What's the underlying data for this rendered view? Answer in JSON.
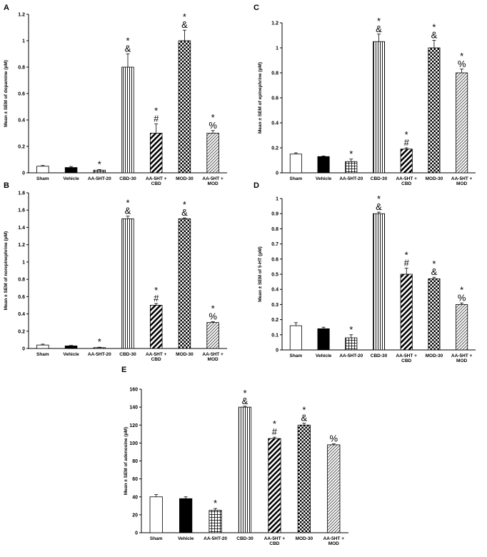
{
  "chart_data": [
    {
      "type": "bar",
      "panel": "A",
      "ylabel": "Mean ± SEM of dopamine (pM)",
      "ylim": [
        0,
        1.2
      ],
      "yticks": [
        "0",
        "0.2",
        "0.4",
        "0.6",
        "0.8",
        "1",
        "1.2"
      ],
      "categories": [
        [
          "Sham"
        ],
        [
          "Vehicle"
        ],
        [
          "AA-5HT-20"
        ],
        [
          "CBD-30"
        ],
        [
          "AA-5HT +",
          "CBD"
        ],
        [
          "MOD-30"
        ],
        [
          "AA-5HT +",
          "MOD"
        ]
      ],
      "values": [
        0.05,
        0.04,
        0.02,
        0.8,
        0.3,
        1.0,
        0.3
      ],
      "errors": [
        0.005,
        0.008,
        0.005,
        0.1,
        0.07,
        0.08,
        0.02
      ],
      "significance": [
        [],
        [],
        [
          "*"
        ],
        [
          "*",
          "&"
        ],
        [
          "*",
          "#"
        ],
        [
          "*",
          "&"
        ],
        [
          "*",
          "%"
        ]
      ]
    },
    {
      "type": "bar",
      "panel": "C",
      "ylabel": "Mean ± SEM of epinephrine (pM)",
      "ylim": [
        0,
        1.2
      ],
      "yticks": [
        "0",
        "0.2",
        "0.4",
        "0.6",
        "0.8",
        "1",
        "1.2"
      ],
      "categories": [
        [
          "Sham"
        ],
        [
          "Vehicle"
        ],
        [
          "AA-5HT-20"
        ],
        [
          "CBD-30"
        ],
        [
          "AA-5HT +",
          "CBD"
        ],
        [
          "MOD-30"
        ],
        [
          "AA-5HT +",
          "MOD"
        ]
      ],
      "values": [
        0.15,
        0.13,
        0.09,
        1.05,
        0.19,
        1.0,
        0.8
      ],
      "errors": [
        0.01,
        0.005,
        0.02,
        0.06,
        0.01,
        0.06,
        0.03
      ],
      "significance": [
        [],
        [],
        [
          "*"
        ],
        [
          "*",
          "&"
        ],
        [
          "*",
          "#"
        ],
        [
          "*",
          "&"
        ],
        [
          "*",
          "%"
        ]
      ]
    },
    {
      "type": "bar",
      "panel": "B",
      "ylabel": "Mean ± SEM of norepinephrine (pM)",
      "ylim": [
        0,
        1.8
      ],
      "yticks": [
        "0",
        "0.2",
        "0.4",
        "0.6",
        "0.8",
        "1",
        "1.2",
        "1.4",
        "1.6",
        "1.8"
      ],
      "categories": [
        [
          "Sham"
        ],
        [
          "Vehicle"
        ],
        [
          "AA-5HT-20"
        ],
        [
          "CBD-30"
        ],
        [
          "AA-5HT +",
          "CBD"
        ],
        [
          "MOD-30"
        ],
        [
          "AA-5HT +",
          "MOD"
        ]
      ],
      "values": [
        0.04,
        0.03,
        0.01,
        1.5,
        0.5,
        1.5,
        0.3
      ],
      "errors": [
        0.01,
        0.005,
        0.005,
        0.03,
        0.02,
        0.01,
        0.01
      ],
      "significance": [
        [],
        [],
        [
          "*"
        ],
        [
          "*",
          "&"
        ],
        [
          "*",
          "#"
        ],
        [
          "*",
          "&"
        ],
        [
          "*",
          "%"
        ]
      ]
    },
    {
      "type": "bar",
      "panel": "D",
      "ylabel": "Mean ± SEM of 5-HT (pM)",
      "ylim": [
        0,
        1
      ],
      "yticks": [
        "0",
        "0.1",
        "0.2",
        "0.3",
        "0.4",
        "0.5",
        "0.6",
        "0.7",
        "0.8",
        "0.9",
        "1"
      ],
      "categories": [
        [
          "Sham"
        ],
        [
          "Vehicle"
        ],
        [
          "AA-5HT-20"
        ],
        [
          "CBD-30"
        ],
        [
          "AA-5HT +",
          "CBD"
        ],
        [
          "MOD-30"
        ],
        [
          "AA-5HT +",
          "MOD"
        ]
      ],
      "values": [
        0.16,
        0.14,
        0.08,
        0.9,
        0.5,
        0.47,
        0.3
      ],
      "errors": [
        0.02,
        0.01,
        0.02,
        0.01,
        0.04,
        0.01,
        0.01
      ],
      "significance": [
        [],
        [],
        [
          "*"
        ],
        [
          "*",
          "&"
        ],
        [
          "*",
          "#"
        ],
        [
          "*",
          "&"
        ],
        [
          "*",
          "%"
        ]
      ]
    },
    {
      "type": "bar",
      "panel": "E",
      "ylabel": "Mean ± SEM of adenosine (pM)",
      "ylim": [
        0,
        160
      ],
      "yticks": [
        "0",
        "20",
        "40",
        "60",
        "80",
        "100",
        "120",
        "140",
        "160"
      ],
      "categories": [
        [
          "Sham"
        ],
        [
          "Vehicle"
        ],
        [
          "AA-5HT-20"
        ],
        [
          "CBD-30"
        ],
        [
          "AA-5HT +",
          "CBD"
        ],
        [
          "MOD-30"
        ],
        [
          "AA-5HT +",
          "MOD"
        ]
      ],
      "values": [
        40,
        38,
        25,
        140,
        105,
        120,
        98
      ],
      "errors": [
        2.5,
        2,
        2,
        1,
        1.5,
        2,
        1
      ],
      "significance": [
        [],
        [],
        [
          "*"
        ],
        [
          "*",
          "&"
        ],
        [
          "*",
          "#"
        ],
        [
          "*",
          "&"
        ],
        [
          "%"
        ]
      ]
    }
  ]
}
